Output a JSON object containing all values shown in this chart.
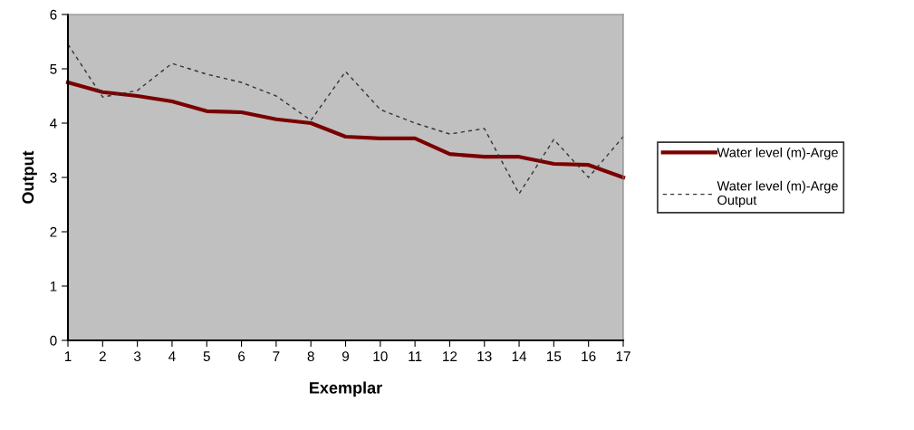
{
  "chart_data": {
    "type": "line",
    "xlabel": "Exemplar",
    "ylabel": "Output",
    "categories": [
      "1",
      "2",
      "3",
      "4",
      "5",
      "6",
      "7",
      "8",
      "9",
      "10",
      "11",
      "12",
      "13",
      "14",
      "15",
      "16",
      "17"
    ],
    "series": [
      {
        "name": "Water level (m)-Arge",
        "color": "#7a0000",
        "line_style": "solid",
        "values": [
          4.75,
          4.57,
          4.5,
          4.4,
          4.22,
          4.2,
          4.07,
          4.0,
          3.75,
          3.72,
          3.72,
          3.43,
          3.38,
          3.38,
          3.25,
          3.23,
          3.0
        ]
      },
      {
        "name": "Water level (m)-Arge Output",
        "color": "#333333",
        "line_style": "dashed",
        "values": [
          5.45,
          4.48,
          4.6,
          5.1,
          4.9,
          4.75,
          4.5,
          4.05,
          4.95,
          4.25,
          4.0,
          3.8,
          3.9,
          2.7,
          3.7,
          3.0,
          3.75
        ]
      }
    ],
    "ylim": [
      0,
      6
    ],
    "yticks": [
      0,
      1,
      2,
      3,
      4,
      5,
      6
    ],
    "grid": false,
    "legend": "right",
    "marker": "none"
  }
}
